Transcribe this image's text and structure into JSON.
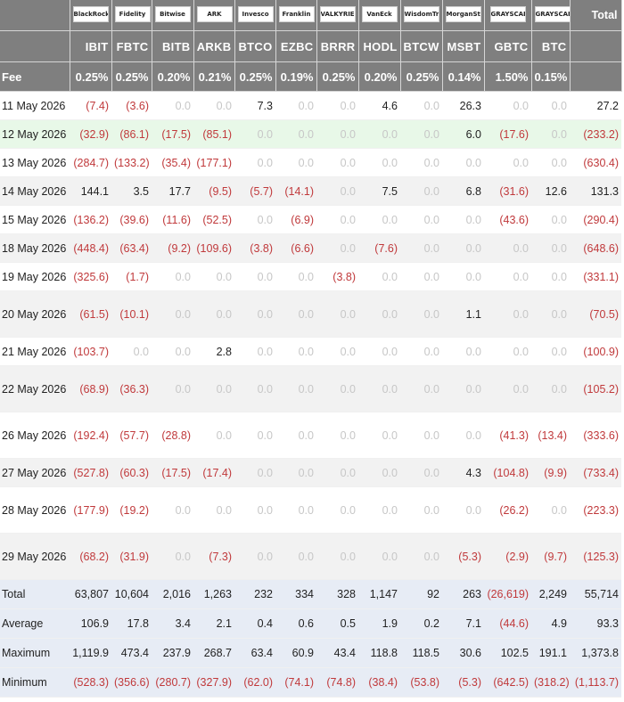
{
  "columns": [
    {
      "ticker": "IBIT",
      "fee": "0.25%",
      "logo_text": "BlackRock"
    },
    {
      "ticker": "FBTC",
      "fee": "0.25%",
      "logo_text": "Fidelity"
    },
    {
      "ticker": "BITB",
      "fee": "0.20%",
      "logo_text": "Bitwise"
    },
    {
      "ticker": "ARKB",
      "fee": "0.21%",
      "logo_text": "ARK"
    },
    {
      "ticker": "BTCO",
      "fee": "0.25%",
      "logo_text": "Invesco"
    },
    {
      "ticker": "EZBC",
      "fee": "0.19%",
      "logo_text": "Franklin"
    },
    {
      "ticker": "BRRR",
      "fee": "0.25%",
      "logo_text": "VALKYRIE"
    },
    {
      "ticker": "HODL",
      "fee": "0.20%",
      "logo_text": "VanEck"
    },
    {
      "ticker": "BTCW",
      "fee": "0.25%",
      "logo_text": "WisdomTree"
    },
    {
      "ticker": "MSBT",
      "fee": "0.14%",
      "logo_text": "MorganStanley"
    },
    {
      "ticker": "GBTC",
      "fee": "1.50%",
      "logo_text": "GRAYSCALE"
    },
    {
      "ticker": "BTC",
      "fee": "0.15%",
      "logo_text": "GRAYSCALE"
    }
  ],
  "header": {
    "total_label": "Total",
    "fee_label": "Fee"
  },
  "rows": [
    {
      "date": "11 May 2026",
      "bg": "#ffffff",
      "values": [
        "(7.4)",
        "(3.6)",
        "0.0",
        "0.0",
        "7.3",
        "0.0",
        "0.0",
        "4.6",
        "0.0",
        "26.3",
        "0.0",
        "0.0"
      ],
      "total": "27.2"
    },
    {
      "date": "12 May 2026",
      "bg": "#e8f8e8",
      "values": [
        "(32.9)",
        "(86.1)",
        "(17.5)",
        "(85.1)",
        "0.0",
        "0.0",
        "0.0",
        "0.0",
        "0.0",
        "6.0",
        "(17.6)",
        "0.0"
      ],
      "total": "(233.2)"
    },
    {
      "date": "13 May 2026",
      "bg": "#ffffff",
      "values": [
        "(284.7)",
        "(133.2)",
        "(35.4)",
        "(177.1)",
        "0.0",
        "0.0",
        "0.0",
        "0.0",
        "0.0",
        "0.0",
        "0.0",
        "0.0"
      ],
      "total": "(630.4)"
    },
    {
      "date": "14 May 2026",
      "bg": "#f2f2f2",
      "values": [
        "144.1",
        "3.5",
        "17.7",
        "(9.5)",
        "(5.7)",
        "(14.1)",
        "0.0",
        "7.5",
        "0.0",
        "6.8",
        "(31.6)",
        "12.6"
      ],
      "total": "131.3"
    },
    {
      "date": "15 May 2026",
      "bg": "#ffffff",
      "values": [
        "(136.2)",
        "(39.6)",
        "(11.6)",
        "(52.5)",
        "0.0",
        "(6.9)",
        "0.0",
        "0.0",
        "0.0",
        "0.0",
        "(43.6)",
        "0.0"
      ],
      "total": "(290.4)"
    },
    {
      "date": "18 May 2026",
      "bg": "#f2f2f2",
      "values": [
        "(448.4)",
        "(63.4)",
        "(9.2)",
        "(109.6)",
        "(3.8)",
        "(6.6)",
        "0.0",
        "(7.6)",
        "0.0",
        "0.0",
        "0.0",
        "0.0"
      ],
      "total": "(648.6)"
    },
    {
      "date": "19 May 2026",
      "bg": "#ffffff",
      "values": [
        "(325.6)",
        "(1.7)",
        "0.0",
        "0.0",
        "0.0",
        "0.0",
        "(3.8)",
        "0.0",
        "0.0",
        "0.0",
        "0.0",
        "0.0"
      ],
      "total": "(331.1)"
    },
    {
      "date": "20 May 2026",
      "bg": "#f2f2f2",
      "values": [
        "(61.5)",
        "(10.1)",
        "0.0",
        "0.0",
        "0.0",
        "0.0",
        "0.0",
        "0.0",
        "0.0",
        "1.1",
        "0.0",
        "0.0"
      ],
      "total": "(70.5)"
    },
    {
      "date": "21 May 2026",
      "bg": "#ffffff",
      "values": [
        "(103.7)",
        "0.0",
        "0.0",
        "2.8",
        "0.0",
        "0.0",
        "0.0",
        "0.0",
        "0.0",
        "0.0",
        "0.0",
        "0.0"
      ],
      "total": "(100.9)"
    },
    {
      "date": "22 May 2026",
      "bg": "#f2f2f2",
      "values": [
        "(68.9)",
        "(36.3)",
        "0.0",
        "0.0",
        "0.0",
        "0.0",
        "0.0",
        "0.0",
        "0.0",
        "0.0",
        "0.0",
        "0.0"
      ],
      "total": "(105.2)"
    },
    {
      "date": "26 May 2026",
      "bg": "#ffffff",
      "values": [
        "(192.4)",
        "(57.7)",
        "(28.8)",
        "0.0",
        "0.0",
        "0.0",
        "0.0",
        "0.0",
        "0.0",
        "0.0",
        "(41.3)",
        "(13.4)"
      ],
      "total": "(333.6)"
    },
    {
      "date": "27 May 2026",
      "bg": "#f2f2f2",
      "values": [
        "(527.8)",
        "(60.3)",
        "(17.5)",
        "(17.4)",
        "0.0",
        "0.0",
        "0.0",
        "0.0",
        "0.0",
        "4.3",
        "(104.8)",
        "(9.9)"
      ],
      "total": "(733.4)"
    },
    {
      "date": "28 May 2026",
      "bg": "#ffffff",
      "values": [
        "(177.9)",
        "(19.2)",
        "0.0",
        "0.0",
        "0.0",
        "0.0",
        "0.0",
        "0.0",
        "0.0",
        "0.0",
        "(26.2)",
        "0.0"
      ],
      "total": "(223.3)"
    },
    {
      "date": "29 May 2026",
      "bg": "#f2f2f2",
      "values": [
        "(68.2)",
        "(31.9)",
        "0.0",
        "(7.3)",
        "0.0",
        "0.0",
        "0.0",
        "0.0",
        "0.0",
        "(5.3)",
        "(2.9)",
        "(9.7)"
      ],
      "total": "(125.3)"
    }
  ],
  "stats": [
    {
      "label": "Total",
      "values": [
        "63,807",
        "10,604",
        "2,016",
        "1,263",
        "232",
        "334",
        "328",
        "1,147",
        "92",
        "263",
        "(26,619)",
        "2,249"
      ],
      "total": "55,714"
    },
    {
      "label": "Average",
      "values": [
        "106.9",
        "17.8",
        "3.4",
        "2.1",
        "0.4",
        "0.6",
        "0.5",
        "1.9",
        "0.2",
        "7.1",
        "(44.6)",
        "4.9"
      ],
      "total": "93.3"
    },
    {
      "label": "Maximum",
      "values": [
        "1,119.9",
        "473.4",
        "237.9",
        "268.7",
        "63.4",
        "60.9",
        "43.4",
        "118.8",
        "118.5",
        "30.6",
        "102.5",
        "191.1"
      ],
      "total": "1,373.8"
    },
    {
      "label": "Minimum",
      "values": [
        "(528.3)",
        "(356.6)",
        "(280.7)",
        "(327.9)",
        "(62.0)",
        "(74.1)",
        "(74.8)",
        "(38.4)",
        "(53.8)",
        "(5.3)",
        "(642.5)",
        "(318.2)"
      ],
      "total": "(1,113.7)"
    }
  ],
  "colors": {
    "header_bg": "#7f7f7f",
    "negative": "#c0393b",
    "zero": "#c7c7c7",
    "stats_bg": "#e7ecf5",
    "highlight_row": "#e8f8e8"
  }
}
